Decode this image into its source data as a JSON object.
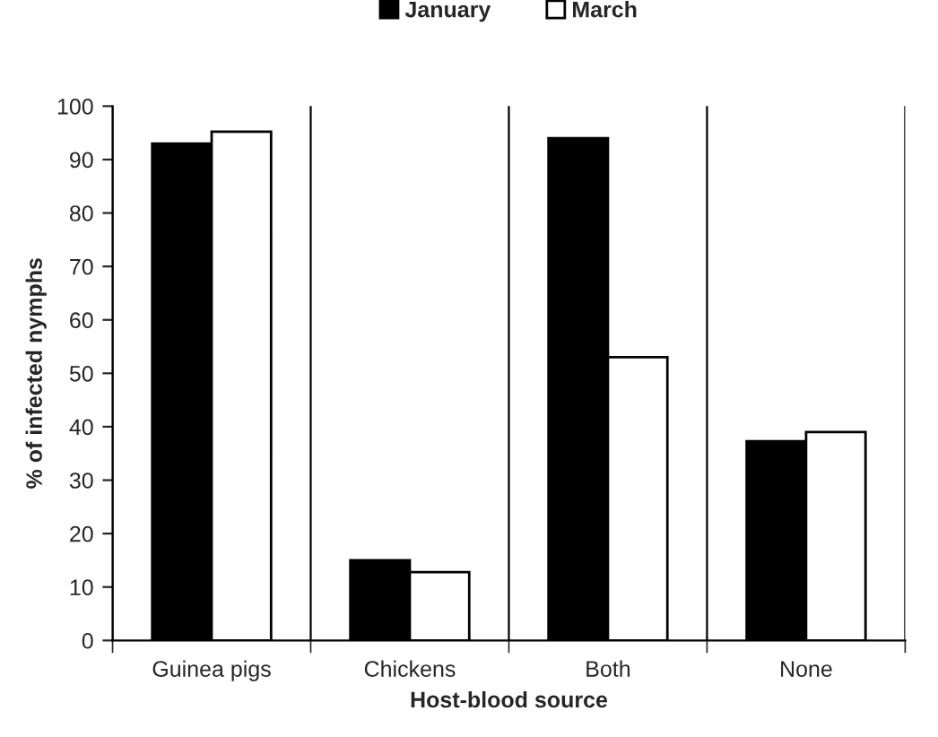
{
  "chart_data": {
    "type": "bar",
    "xlabel": "Host-blood source",
    "ylabel": "% of infected nymphs",
    "categories": [
      "Guinea pigs",
      "Chickens",
      "Both",
      "None"
    ],
    "series": [
      {
        "name": "January",
        "color": "#000000",
        "values": [
          93,
          15,
          94,
          37.3
        ]
      },
      {
        "name": "March",
        "color": "#ffffff",
        "values": [
          95.2,
          12.8,
          53,
          39
        ]
      }
    ],
    "ylim": [
      0,
      100
    ],
    "yticks": [
      0,
      10,
      20,
      30,
      40,
      50,
      60,
      70,
      80,
      90,
      100
    ],
    "grid": "x",
    "legend": "top"
  }
}
